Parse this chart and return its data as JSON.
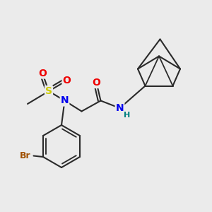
{
  "bg_color": "#ebebeb",
  "bond_color": "#2a2a2a",
  "bond_width": 1.5,
  "atom_colors": {
    "N": "#0000ee",
    "O": "#ee0000",
    "S": "#cccc00",
    "Br": "#a05000",
    "H": "#008080",
    "C": "#2a2a2a"
  },
  "font_size_atoms": 10,
  "font_size_br": 9,
  "font_size_h": 8
}
